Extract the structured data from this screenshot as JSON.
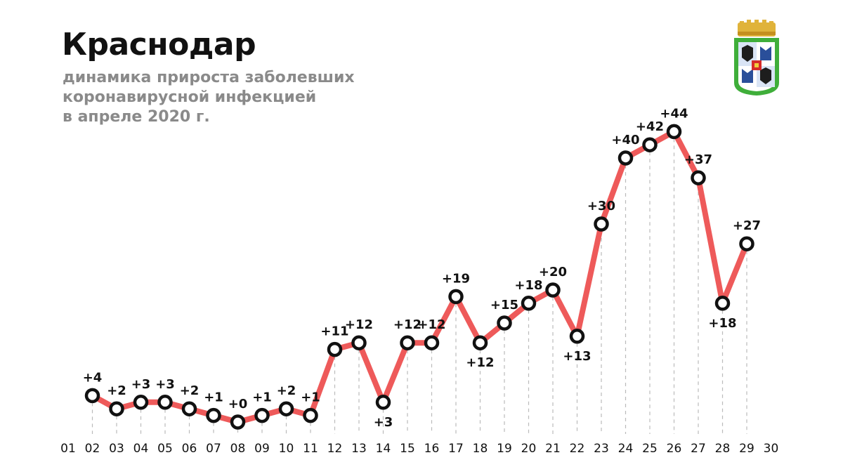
{
  "title": "Краснодар",
  "subtitle_lines": [
    "динамика прироста заболевших",
    "коронавирусной инфекцией",
    "в апреле 2020 г."
  ],
  "crest_icon": "krasnodar-coat-of-arms",
  "colors": {
    "line": "#ee5a5a",
    "marker_stroke": "#111111",
    "marker_fill": "#ffffff",
    "title": "#111111",
    "subtitle": "#8a8a8a",
    "gridline": "#bbbbbb"
  },
  "chart_data": {
    "type": "line",
    "title": "",
    "xlabel": "",
    "ylabel": "",
    "x_ticks": [
      "01",
      "02",
      "03",
      "04",
      "05",
      "06",
      "07",
      "08",
      "09",
      "10",
      "11",
      "12",
      "13",
      "14",
      "15",
      "16",
      "17",
      "18",
      "19",
      "20",
      "21",
      "22",
      "23",
      "24",
      "25",
      "26",
      "27",
      "28",
      "29",
      "30"
    ],
    "x": [
      "02",
      "03",
      "04",
      "05",
      "06",
      "07",
      "08",
      "09",
      "10",
      "11",
      "12",
      "13",
      "14",
      "15",
      "16",
      "17",
      "18",
      "19",
      "20",
      "21",
      "22",
      "23",
      "24",
      "25",
      "26",
      "27",
      "28",
      "29"
    ],
    "values": [
      4,
      2,
      3,
      3,
      2,
      1,
      0,
      1,
      2,
      1,
      11,
      12,
      3,
      12,
      12,
      19,
      12,
      15,
      18,
      20,
      13,
      30,
      40,
      42,
      44,
      37,
      18,
      27
    ],
    "labels": [
      "+4",
      "+2",
      "+3",
      "+3",
      "+2",
      "+1",
      "+0",
      "+1",
      "+2",
      "+1",
      "+11",
      "+12",
      "+3",
      "+12",
      "+12",
      "+19",
      "+12",
      "+15",
      "+18",
      "+20",
      "+13",
      "+30",
      "+40",
      "+42",
      "+44",
      "+37",
      "+18",
      "+27"
    ],
    "label_below": [
      "14",
      "18",
      "22",
      "28"
    ],
    "grid": "vertical dashed drop lines",
    "legend": "none"
  }
}
